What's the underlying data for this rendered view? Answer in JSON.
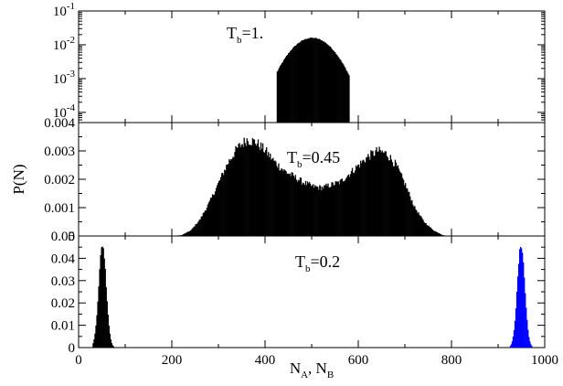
{
  "chart_data": {
    "type": "area",
    "ylabel": "P(N)",
    "xlabel": "N_A, N_B",
    "xlabel_main": "N",
    "xlabel_sub_a": "A",
    "xlabel_sep": ", N",
    "xlabel_sub_b": "B",
    "xlim": [
      0,
      1000
    ],
    "x_ticks": [
      "0",
      "200",
      "400",
      "600",
      "800",
      "1000"
    ],
    "x_tick_values": [
      0,
      200,
      400,
      600,
      800,
      1000
    ],
    "panels": [
      {
        "id": "top",
        "label_main": "T",
        "label_sub": "b",
        "label_rest": "=1.",
        "yscale": "log",
        "ylim": [
          5e-05,
          0.1
        ],
        "y_tick_base": "10",
        "y_tick_exponents": [
          "-1",
          "-2",
          "-3",
          "-4"
        ],
        "y_tick_values": [
          0.1,
          0.01,
          0.001,
          0.0001
        ],
        "series": [
          {
            "color": "#000000",
            "shape": "gaussian",
            "peak_x": 500,
            "peak_y": 0.016,
            "sigma": 35,
            "x_range": [
              425,
              580
            ]
          }
        ]
      },
      {
        "id": "middle",
        "label_main": "T",
        "label_sub": "b",
        "label_rest": "=0.45",
        "yscale": "linear",
        "ylim": [
          0,
          0.004
        ],
        "y_tick_labels": [
          "0",
          "0.001",
          "0.002",
          "0.003",
          "0.004"
        ],
        "y_tick_values": [
          0,
          0.001,
          0.002,
          0.003,
          0.004
        ],
        "series": [
          {
            "color": "#000000",
            "shape": "bimodal",
            "x_range": [
              200,
              790
            ],
            "points": [
              [
                200,
                0.0
              ],
              [
                220,
                3e-05
              ],
              [
                240,
                0.0002
              ],
              [
                260,
                0.0006
              ],
              [
                280,
                0.0012
              ],
              [
                300,
                0.0019
              ],
              [
                320,
                0.0026
              ],
              [
                340,
                0.0031
              ],
              [
                360,
                0.0034
              ],
              [
                380,
                0.0033
              ],
              [
                400,
                0.003
              ],
              [
                420,
                0.0026
              ],
              [
                440,
                0.0023
              ],
              [
                460,
                0.0021
              ],
              [
                480,
                0.0019
              ],
              [
                500,
                0.00175
              ],
              [
                520,
                0.0017
              ],
              [
                540,
                0.0018
              ],
              [
                560,
                0.0019
              ],
              [
                580,
                0.0022
              ],
              [
                600,
                0.0025
              ],
              [
                620,
                0.0028
              ],
              [
                640,
                0.003
              ],
              [
                660,
                0.0029
              ],
              [
                680,
                0.0025
              ],
              [
                700,
                0.0018
              ],
              [
                720,
                0.001
              ],
              [
                740,
                0.0005
              ],
              [
                760,
                0.0002
              ],
              [
                780,
                3e-05
              ],
              [
                790,
                0.0
              ]
            ]
          }
        ]
      },
      {
        "id": "bottom",
        "label_main": "T",
        "label_sub": "b",
        "label_rest": "=0.2",
        "yscale": "linear",
        "ylim": [
          0,
          0.05
        ],
        "y_tick_labels": [
          "0",
          "0.01",
          "0.02",
          "0.03",
          "0.04",
          "0.05"
        ],
        "y_tick_values": [
          0,
          0.01,
          0.02,
          0.03,
          0.04,
          0.05
        ],
        "series": [
          {
            "color": "#000000",
            "shape": "gaussian",
            "peak_x": 50,
            "peak_y": 0.046,
            "sigma": 8,
            "x_range": [
              30,
              75
            ]
          },
          {
            "color": "#0000ff",
            "shape": "gaussian",
            "peak_x": 948,
            "peak_y": 0.046,
            "sigma": 8,
            "x_range": [
              925,
              972
            ]
          }
        ]
      }
    ]
  }
}
